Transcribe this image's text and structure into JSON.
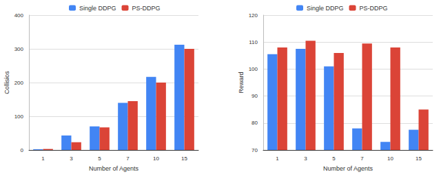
{
  "chart_data": [
    {
      "type": "bar",
      "x_label": "Number of Agents",
      "y_label": "Collisios",
      "categories": [
        "1",
        "3",
        "5",
        "7",
        "10",
        "15"
      ],
      "series": [
        {
          "name": "Single DDPG",
          "color": "#4285f4",
          "values": [
            2,
            43,
            70,
            140,
            217,
            312
          ]
        },
        {
          "name": "PS-DDPG",
          "color": "#db4437",
          "values": [
            3,
            23,
            67,
            145,
            200,
            300
          ]
        }
      ],
      "ylim": [
        0,
        400
      ],
      "yticks": [
        0,
        100,
        200,
        300,
        400
      ],
      "grid": true,
      "legend": "top"
    },
    {
      "type": "bar",
      "x_label": "Number of Agents",
      "y_label": "Reward",
      "categories": [
        "1",
        "3",
        "5",
        "7",
        "10",
        "15"
      ],
      "series": [
        {
          "name": "Single DDPG",
          "color": "#4285f4",
          "values": [
            105.5,
            107.5,
            101,
            78,
            73,
            77.5
          ]
        },
        {
          "name": "PS-DDPG",
          "color": "#db4437",
          "values": [
            108,
            110.5,
            106,
            109.5,
            108,
            85
          ]
        }
      ],
      "ylim": [
        70,
        120
      ],
      "yticks": [
        70,
        80,
        90,
        100,
        110,
        120
      ],
      "grid": true,
      "legend": "top"
    }
  ]
}
